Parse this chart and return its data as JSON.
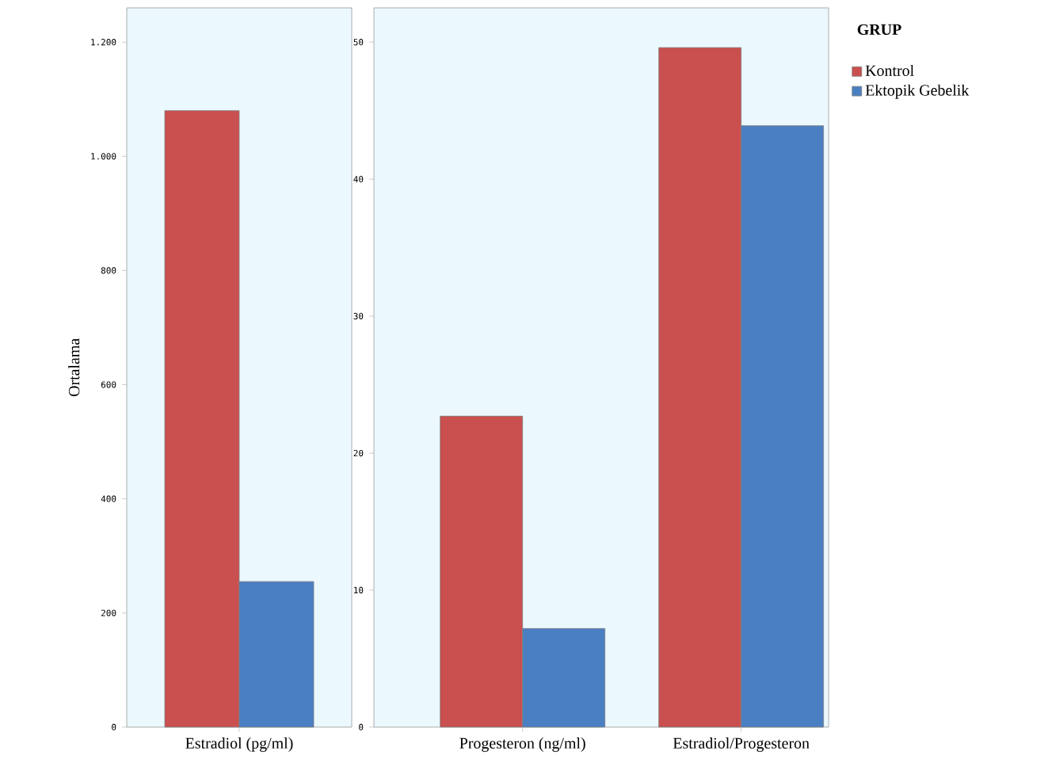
{
  "chart_data": [
    {
      "type": "bar",
      "ylabel": "Ortalama",
      "categories": [
        "Estradiol (pg/ml)"
      ],
      "series": [
        {
          "color": "#c9504f",
          "values": [
            1080
          ]
        },
        {
          "color": "#4a7fc1",
          "values": [
            255
          ]
        }
      ],
      "ylim": [
        0,
        1260
      ],
      "yticks": [
        0,
        200,
        400,
        600,
        800,
        {
          "value": 1000,
          "label": "1.000"
        },
        {
          "value": 1200,
          "label": "1.200"
        }
      ],
      "legend": false
    },
    {
      "type": "bar",
      "legend_title": "GRUP",
      "categories": [
        "Progesteron (ng/ml)",
        "Estradiol/Progesteron"
      ],
      "series": [
        {
          "name": "Kontrol",
          "color": "#c9504f",
          "values": [
            22.7,
            49.6
          ]
        },
        {
          "name": "Ektopik Gebelik",
          "color": "#4a7fc1",
          "values": [
            7.2,
            43.9
          ]
        }
      ],
      "ylim": [
        0,
        52.5
      ],
      "yticks": [
        0,
        10,
        20,
        30,
        40,
        50
      ],
      "legend": "top right"
    }
  ]
}
